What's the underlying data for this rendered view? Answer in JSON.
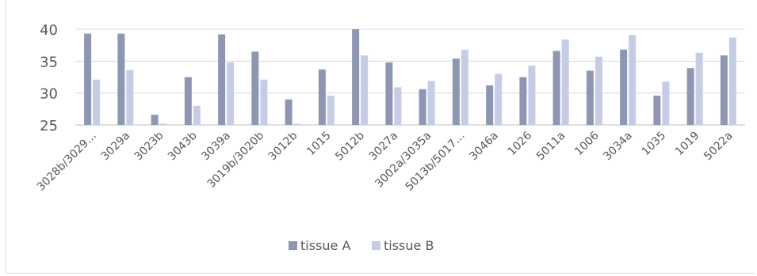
{
  "chart_data": {
    "type": "bar",
    "categories": [
      "3028b/3029…",
      "3029a",
      "3023b",
      "3043b",
      "3039a",
      "3019b/3020b",
      "3012b",
      "1015",
      "5012b",
      "3027a",
      "3002a/3035a",
      "5013b/5017…",
      "3046a",
      "1026",
      "5011a",
      "1006",
      "3034a",
      "1035",
      "1019",
      "5022a"
    ],
    "series": [
      {
        "name": "tissue A",
        "color": "#8d96b3",
        "values": [
          39.3,
          39.3,
          26.6,
          32.5,
          39.2,
          36.5,
          29.0,
          33.7,
          40.0,
          34.8,
          30.6,
          35.4,
          31.2,
          32.5,
          36.6,
          33.5,
          36.8,
          29.6,
          33.9,
          35.9
        ]
      },
      {
        "name": "tissue B",
        "color": "#c5cde6",
        "values": [
          32.1,
          33.6,
          24.8,
          28.0,
          34.8,
          32.1,
          24.8,
          29.6,
          35.9,
          30.9,
          31.9,
          36.8,
          33.0,
          34.3,
          38.4,
          35.7,
          39.1,
          31.8,
          36.3,
          38.7
        ]
      }
    ],
    "ylim": [
      25,
      40
    ],
    "yticks": [
      25,
      30,
      35,
      40
    ],
    "grid": true,
    "legend_position": "bottom"
  }
}
